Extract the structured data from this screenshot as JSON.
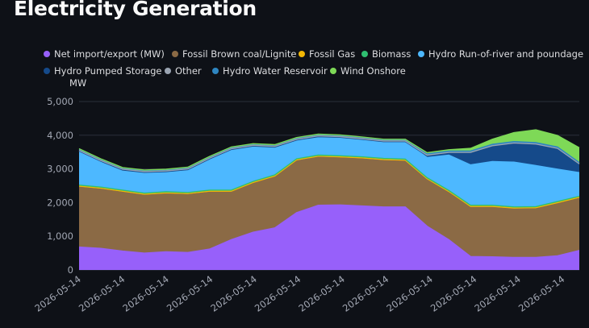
{
  "page": {
    "title": "Electricity Generation"
  },
  "chart_data": {
    "type": "area",
    "stacked": true,
    "ylabel": "MW",
    "ylim": [
      0,
      5000
    ],
    "yticks": [
      0,
      1000,
      2000,
      3000,
      4000,
      5000
    ],
    "ytick_labels": [
      "0",
      "1,000",
      "2,000",
      "3,000",
      "4,000",
      "5,000"
    ],
    "xtick_labels": [
      "2026-05-14",
      "2026-05-14",
      "2026-05-14",
      "2026-05-14",
      "2026-05-14",
      "2026-05-14",
      "2026-05-14",
      "2026-05-14",
      "2026-05-14",
      "2026-05-14",
      "2026-05-14",
      "2026-05-14"
    ],
    "grid": true,
    "legend_position": "top",
    "series": [
      {
        "name": "Net import/export (MW)",
        "color": "#9760fa",
        "values": [
          680,
          640,
          560,
          500,
          540,
          520,
          620,
          900,
          1120,
          1250,
          1700,
          1920,
          1930,
          1900,
          1870,
          1870,
          1300,
          900,
          400,
          390,
          370,
          370,
          420,
          580
        ]
      },
      {
        "name": "Fossil Brown coal/Lignite",
        "color": "#8b6a45",
        "values": [
          1780,
          1760,
          1750,
          1720,
          1720,
          1720,
          1690,
          1410,
          1450,
          1510,
          1540,
          1430,
          1400,
          1400,
          1380,
          1360,
          1380,
          1400,
          1460,
          1470,
          1440,
          1450,
          1550,
          1550
        ]
      },
      {
        "name": "Fossil Gas",
        "color": "#f2b705",
        "values": [
          30,
          30,
          30,
          30,
          30,
          30,
          30,
          30,
          30,
          30,
          30,
          30,
          30,
          30,
          30,
          30,
          30,
          30,
          30,
          30,
          30,
          30,
          30,
          30
        ]
      },
      {
        "name": "Biomass",
        "color": "#2fbf71",
        "values": [
          30,
          30,
          30,
          30,
          30,
          30,
          30,
          30,
          30,
          30,
          30,
          30,
          30,
          30,
          30,
          30,
          30,
          30,
          30,
          30,
          30,
          30,
          30,
          30
        ]
      },
      {
        "name": "Hydro Run-of-river and poundage",
        "color": "#4db8ff",
        "values": [
          1010,
          770,
          600,
          620,
          600,
          680,
          930,
          1210,
          1050,
          830,
          560,
          550,
          550,
          520,
          500,
          520,
          600,
          1050,
          1200,
          1300,
          1330,
          1220,
          960,
          700
        ]
      },
      {
        "name": "Hydro Pumped Storage",
        "color": "#154a8a",
        "values": [
          0,
          0,
          0,
          0,
          0,
          0,
          0,
          0,
          0,
          0,
          0,
          0,
          0,
          0,
          0,
          0,
          50,
          60,
          350,
          450,
          550,
          620,
          600,
          240
        ]
      },
      {
        "name": "Other",
        "color": "#9aa4b2",
        "values": [
          20,
          20,
          20,
          20,
          20,
          20,
          20,
          20,
          20,
          20,
          20,
          20,
          20,
          20,
          20,
          20,
          20,
          20,
          20,
          20,
          20,
          20,
          20,
          20
        ]
      },
      {
        "name": "Hydro Water Reservoir",
        "color": "#2e86c1",
        "values": [
          40,
          40,
          40,
          40,
          40,
          40,
          40,
          40,
          40,
          40,
          40,
          40,
          40,
          40,
          40,
          40,
          40,
          40,
          40,
          40,
          40,
          40,
          40,
          40
        ]
      },
      {
        "name": "Wind Onshore",
        "color": "#7ed957",
        "values": [
          10,
          10,
          10,
          10,
          10,
          10,
          10,
          10,
          10,
          10,
          10,
          10,
          10,
          10,
          10,
          10,
          30,
          40,
          80,
          150,
          270,
          380,
          340,
          440
        ]
      }
    ]
  }
}
